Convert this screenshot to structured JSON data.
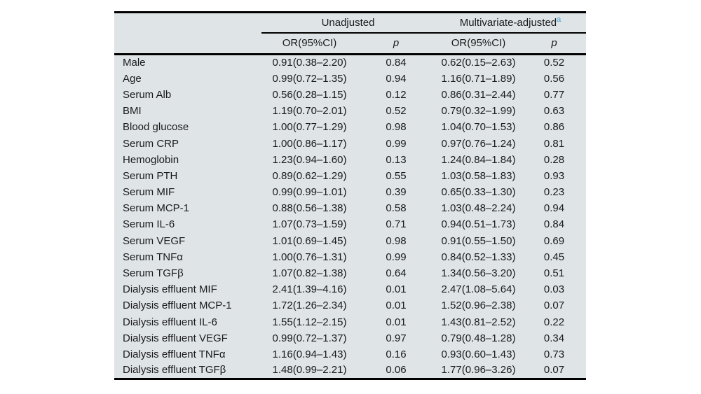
{
  "page": {
    "background": "#ffffff"
  },
  "table": {
    "background": "#dfe4e7",
    "rule_color": "#000000",
    "footnote_marker_color": "#3fa0d0",
    "group_headers": {
      "unadjusted": "Unadjusted",
      "adjusted": "Multivariate-adjusted",
      "adjusted_footnote_marker": "a"
    },
    "col_headers": {
      "unadjusted_or": "OR(95%CI)",
      "unadjusted_p": "p",
      "adjusted_or": "OR(95%CI)",
      "adjusted_p": "p"
    },
    "rows": [
      {
        "label": "Male",
        "u_or": "0.91(0.38–2.20)",
        "u_p": "0.84",
        "m_or": "0.62(0.15–2.63)",
        "m_p": "0.52"
      },
      {
        "label": "Age",
        "u_or": "0.99(0.72–1.35)",
        "u_p": "0.94",
        "m_or": "1.16(0.71–1.89)",
        "m_p": "0.56"
      },
      {
        "label": "Serum Alb",
        "u_or": "0.56(0.28–1.15)",
        "u_p": "0.12",
        "m_or": "0.86(0.31–2.44)",
        "m_p": "0.77"
      },
      {
        "label": "BMI",
        "u_or": "1.19(0.70–2.01)",
        "u_p": "0.52",
        "m_or": "0.79(0.32–1.99)",
        "m_p": "0.63"
      },
      {
        "label": "Blood glucose",
        "u_or": "1.00(0.77–1.29)",
        "u_p": "0.98",
        "m_or": "1.04(0.70–1.53)",
        "m_p": "0.86"
      },
      {
        "label": "Serum CRP",
        "u_or": "1.00(0.86–1.17)",
        "u_p": "0.99",
        "m_or": "0.97(0.76–1.24)",
        "m_p": "0.81"
      },
      {
        "label": "Hemoglobin",
        "u_or": "1.23(0.94–1.60)",
        "u_p": "0.13",
        "m_or": "1.24(0.84–1.84)",
        "m_p": "0.28"
      },
      {
        "label": "Serum PTH",
        "u_or": "0.89(0.62–1.29)",
        "u_p": "0.55",
        "m_or": "1.03(0.58–1.83)",
        "m_p": "0.93"
      },
      {
        "label": "Serum MIF",
        "u_or": "0.99(0.99–1.01)",
        "u_p": "0.39",
        "m_or": "0.65(0.33–1.30)",
        "m_p": "0.23"
      },
      {
        "label": "Serum MCP-1",
        "u_or": "0.88(0.56–1.38)",
        "u_p": "0.58",
        "m_or": "1.03(0.48–2.24)",
        "m_p": "0.94"
      },
      {
        "label": "Serum IL-6",
        "u_or": "1.07(0.73–1.59)",
        "u_p": "0.71",
        "m_or": "0.94(0.51–1.73)",
        "m_p": "0.84"
      },
      {
        "label": "Serum VEGF",
        "u_or": "1.01(0.69–1.45)",
        "u_p": "0.98",
        "m_or": "0.91(0.55–1.50)",
        "m_p": "0.69"
      },
      {
        "label": "Serum TNFα",
        "u_or": "1.00(0.76–1.31)",
        "u_p": "0.99",
        "m_or": "0.84(0.52–1.33)",
        "m_p": "0.45"
      },
      {
        "label": "Serum TGFβ",
        "u_or": "1.07(0.82–1.38)",
        "u_p": "0.64",
        "m_or": "1.34(0.56–3.20)",
        "m_p": "0.51"
      },
      {
        "label": "Dialysis effluent MIF",
        "u_or": "2.41(1.39–4.16)",
        "u_p": "0.01",
        "m_or": "2.47(1.08–5.64)",
        "m_p": "0.03"
      },
      {
        "label": "Dialysis effluent MCP-1",
        "u_or": "1.72(1.26–2.34)",
        "u_p": "0.01",
        "m_or": "1.52(0.96–2.38)",
        "m_p": "0.07"
      },
      {
        "label": "Dialysis effluent IL-6",
        "u_or": "1.55(1.12–2.15)",
        "u_p": "0.01",
        "m_or": "1.43(0.81–2.52)",
        "m_p": "0.22"
      },
      {
        "label": "Dialysis effluent VEGF",
        "u_or": "0.99(0.72–1.37)",
        "u_p": "0.97",
        "m_or": "0.79(0.48–1.28)",
        "m_p": "0.34"
      },
      {
        "label": "Dialysis effluent TNFα",
        "u_or": "1.16(0.94–1.43)",
        "u_p": "0.16",
        "m_or": "0.93(0.60–1.43)",
        "m_p": "0.73"
      },
      {
        "label": "Dialysis effluent TGFβ",
        "u_or": "1.48(0.99–2.21)",
        "u_p": "0.06",
        "m_or": "1.77(0.96–3.26)",
        "m_p": "0.07"
      }
    ]
  }
}
